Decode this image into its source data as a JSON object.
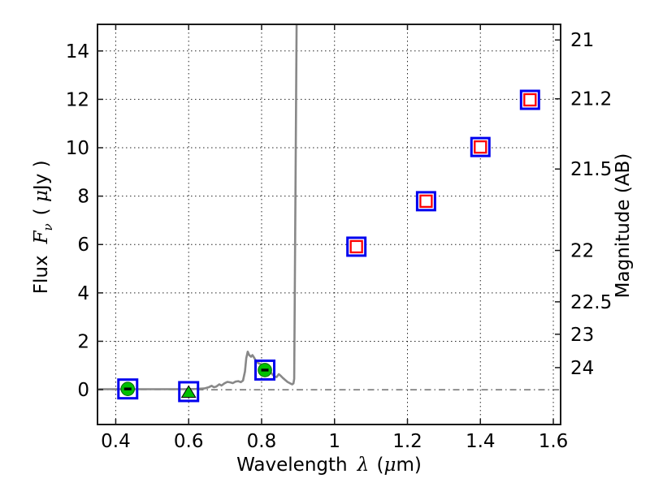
{
  "chart_data": {
    "type": "scatter",
    "title": "",
    "xlabel": {
      "text": "Wavelength",
      "lambda": "λ",
      "units_open": "(",
      "mu": "μ",
      "units_close": "m)"
    },
    "ylabel_left": {
      "text": "Flux",
      "symbol": "F",
      "subscript": "ν",
      "units_open": "( ",
      "mu": "μ",
      "units_close": "Jy )"
    },
    "ylabel_right": "Magnitude (AB)",
    "xlim": [
      0.35,
      1.62
    ],
    "ylim": [
      -1.44,
      15.1
    ],
    "grid": "dotted",
    "legend": "none",
    "x_ticks": [
      {
        "v": 0.4,
        "label": "0.4"
      },
      {
        "v": 0.6,
        "label": "0.6"
      },
      {
        "v": 0.8,
        "label": "0.8"
      },
      {
        "v": 1.0,
        "label": "1"
      },
      {
        "v": 1.2,
        "label": "1.2"
      },
      {
        "v": 1.4,
        "label": "1.4"
      },
      {
        "v": 1.6,
        "label": "1.6"
      }
    ],
    "flux_ticks": [
      {
        "v": 0,
        "label": "0"
      },
      {
        "v": 2,
        "label": "2"
      },
      {
        "v": 4,
        "label": "4"
      },
      {
        "v": 6,
        "label": "6"
      },
      {
        "v": 8,
        "label": "8"
      },
      {
        "v": 10,
        "label": "10"
      },
      {
        "v": 12,
        "label": "12"
      },
      {
        "v": 14,
        "label": "14"
      }
    ],
    "mag_ticks": [
      {
        "mag": 21,
        "label": "21"
      },
      {
        "mag": 21.2,
        "label": "21.2"
      },
      {
        "mag": 21.5,
        "label": "21.5"
      },
      {
        "mag": 22,
        "label": "22"
      },
      {
        "mag": 22.5,
        "label": "22.5"
      },
      {
        "mag": 23,
        "label": "23"
      },
      {
        "mag": 24,
        "label": "24"
      }
    ],
    "ab_zero_point": 23.9,
    "colors": {
      "spectrum": "#888888",
      "square": "#0000ee",
      "inner_square": "#ff0000",
      "limit_fill": "#00c000",
      "grid": "#000000",
      "spine": "#1a1a1a"
    },
    "photometry": {
      "detections": [
        {
          "x": 1.06,
          "flux": 5.91,
          "mag_ab": 21.97
        },
        {
          "x": 1.251,
          "flux": 7.79,
          "mag_ab": 21.67
        },
        {
          "x": 1.4,
          "flux": 10.03,
          "mag_ab": 21.4
        },
        {
          "x": 1.536,
          "flux": 11.98,
          "mag_ab": 21.2
        }
      ],
      "limits": [
        {
          "x": 0.433,
          "flux": 0.03,
          "marker": "circle-dash"
        },
        {
          "x": 0.6,
          "flux": -0.08,
          "marker": "triangle-up"
        },
        {
          "x": 0.809,
          "flux": 0.81,
          "marker": "circle-dash"
        }
      ]
    },
    "spectrum_points": [
      [
        0.353,
        0.02
      ],
      [
        0.42,
        0.02
      ],
      [
        0.5,
        0.02
      ],
      [
        0.58,
        0.02
      ],
      [
        0.62,
        0.03
      ],
      [
        0.643,
        0.05
      ],
      [
        0.655,
        0.1
      ],
      [
        0.663,
        0.16
      ],
      [
        0.669,
        0.1
      ],
      [
        0.676,
        0.13
      ],
      [
        0.684,
        0.22
      ],
      [
        0.69,
        0.17
      ],
      [
        0.698,
        0.26
      ],
      [
        0.706,
        0.32
      ],
      [
        0.714,
        0.3
      ],
      [
        0.721,
        0.27
      ],
      [
        0.728,
        0.33
      ],
      [
        0.736,
        0.35
      ],
      [
        0.743,
        0.31
      ],
      [
        0.749,
        0.38
      ],
      [
        0.7545,
        0.75
      ],
      [
        0.758,
        1.3
      ],
      [
        0.762,
        1.57
      ],
      [
        0.766,
        1.43
      ],
      [
        0.771,
        1.36
      ],
      [
        0.775,
        1.43
      ],
      [
        0.78,
        1.31
      ],
      [
        0.785,
        1.18
      ],
      [
        0.791,
        1.1
      ],
      [
        0.798,
        1.05
      ],
      [
        0.804,
        1.0
      ],
      [
        0.811,
        0.94
      ],
      [
        0.817,
        0.86
      ],
      [
        0.823,
        0.76
      ],
      [
        0.829,
        0.64
      ],
      [
        0.835,
        0.55
      ],
      [
        0.841,
        0.52
      ],
      [
        0.847,
        0.64
      ],
      [
        0.852,
        0.58
      ],
      [
        0.858,
        0.49
      ],
      [
        0.864,
        0.41
      ],
      [
        0.871,
        0.32
      ],
      [
        0.878,
        0.26
      ],
      [
        0.884,
        0.22
      ],
      [
        0.8875,
        0.26
      ],
      [
        0.8895,
        0.45
      ],
      [
        0.896,
        15.3
      ]
    ]
  }
}
